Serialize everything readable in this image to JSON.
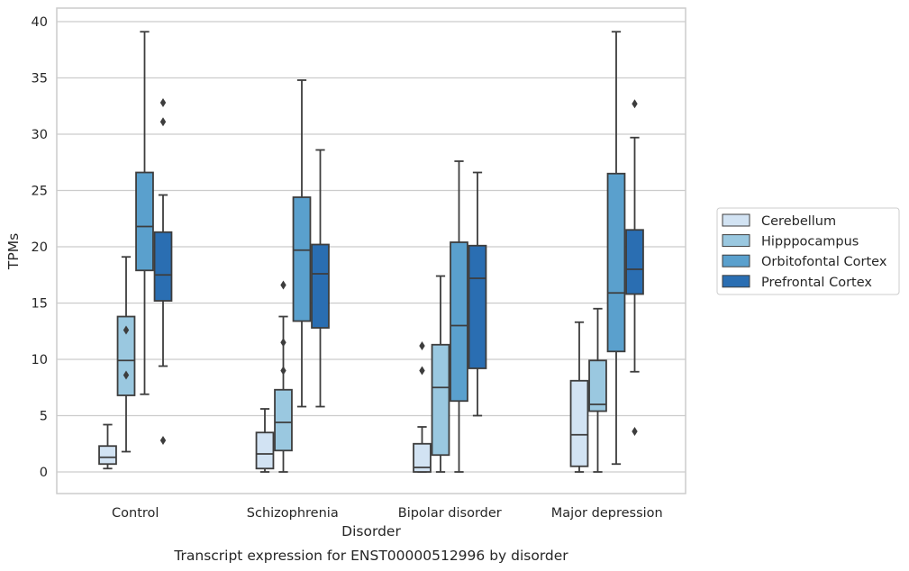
{
  "chart_data": {
    "type": "box",
    "caption": "Transcript expression for ENST00000512996 by disorder",
    "xlabel": "Disorder",
    "ylabel": "TPMs",
    "ylim": [
      -2,
      41
    ],
    "yticks": [
      0,
      5,
      10,
      15,
      20,
      25,
      30,
      35,
      40
    ],
    "grid": true,
    "legend_position": "right",
    "categories": [
      "Control",
      "Schizophrenia",
      "Bipolar disorder",
      "Major depression"
    ],
    "series": [
      {
        "name": "Cerebellum",
        "color": "#d2e3f3",
        "boxes": [
          {
            "whisker_low": 0.3,
            "q1": 0.7,
            "median": 1.3,
            "q3": 2.3,
            "whisker_high": 4.2,
            "outliers": []
          },
          {
            "whisker_low": 0.0,
            "q1": 0.3,
            "median": 1.6,
            "q3": 3.5,
            "whisker_high": 5.6,
            "outliers": []
          },
          {
            "whisker_low": 0.0,
            "q1": 0.0,
            "median": 0.4,
            "q3": 2.5,
            "whisker_high": 4.0,
            "outliers": [
              9.0,
              11.2
            ]
          },
          {
            "whisker_low": 0.0,
            "q1": 0.5,
            "median": 3.3,
            "q3": 8.1,
            "whisker_high": 13.3,
            "outliers": []
          }
        ]
      },
      {
        "name": "Hipppocampus",
        "color": "#9ac8e0",
        "boxes": [
          {
            "whisker_low": 1.8,
            "q1": 6.8,
            "median": 9.9,
            "q3": 13.8,
            "whisker_high": 19.1,
            "outliers": [
              8.6,
              12.6
            ]
          },
          {
            "whisker_low": 0.0,
            "q1": 1.9,
            "median": 4.4,
            "q3": 7.3,
            "whisker_high": 13.8,
            "outliers": [
              9.0,
              11.5,
              16.6
            ]
          },
          {
            "whisker_low": 0.0,
            "q1": 1.5,
            "median": 7.5,
            "q3": 11.3,
            "whisker_high": 17.4,
            "outliers": []
          },
          {
            "whisker_low": 0.0,
            "q1": 5.4,
            "median": 6.0,
            "q3": 9.9,
            "whisker_high": 14.5,
            "outliers": []
          }
        ]
      },
      {
        "name": "Orbitofontal Cortex",
        "color": "#5aa0cd",
        "boxes": [
          {
            "whisker_low": 6.9,
            "q1": 17.9,
            "median": 21.8,
            "q3": 26.6,
            "whisker_high": 39.1,
            "outliers": []
          },
          {
            "whisker_low": 5.8,
            "q1": 13.4,
            "median": 19.7,
            "q3": 24.4,
            "whisker_high": 34.8,
            "outliers": []
          },
          {
            "whisker_low": 0.0,
            "q1": 6.3,
            "median": 13.0,
            "q3": 20.4,
            "whisker_high": 27.6,
            "outliers": []
          },
          {
            "whisker_low": 0.7,
            "q1": 10.7,
            "median": 15.9,
            "q3": 26.5,
            "whisker_high": 39.1,
            "outliers": []
          }
        ]
      },
      {
        "name": "Prefrontal Cortex",
        "color": "#2a6eb2",
        "boxes": [
          {
            "whisker_low": 9.4,
            "q1": 15.2,
            "median": 17.5,
            "q3": 21.3,
            "whisker_high": 24.6,
            "outliers": [
              2.8,
              31.1,
              32.8
            ]
          },
          {
            "whisker_low": 5.8,
            "q1": 12.8,
            "median": 17.6,
            "q3": 20.2,
            "whisker_high": 28.6,
            "outliers": []
          },
          {
            "whisker_low": 5.0,
            "q1": 9.2,
            "median": 17.2,
            "q3": 20.1,
            "whisker_high": 26.6,
            "outliers": []
          },
          {
            "whisker_low": 8.9,
            "q1": 15.8,
            "median": 18.0,
            "q3": 21.5,
            "whisker_high": 29.7,
            "outliers": [
              3.6,
              32.7
            ]
          }
        ]
      }
    ]
  }
}
